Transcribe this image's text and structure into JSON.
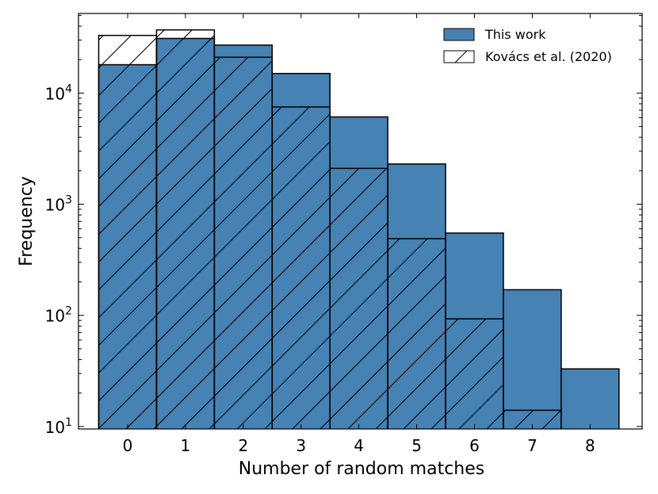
{
  "chart_data": {
    "type": "bar",
    "title": "",
    "xlabel": "Number of random matches",
    "ylabel": "Frequency",
    "yscale": "log",
    "xlim": [
      -0.85,
      8.9
    ],
    "ylim": [
      9.5,
      52000
    ],
    "categories": [
      0,
      1,
      2,
      3,
      4,
      5,
      6,
      7,
      8
    ],
    "xticks": [
      "0",
      "1",
      "2",
      "3",
      "4",
      "5",
      "6",
      "7",
      "8"
    ],
    "yticks": [
      {
        "value": 10,
        "base": "10",
        "exp": "1"
      },
      {
        "value": 100,
        "base": "10",
        "exp": "2"
      },
      {
        "value": 1000,
        "base": "10",
        "exp": "3"
      },
      {
        "value": 10000,
        "base": "10",
        "exp": "4"
      }
    ],
    "legend_position": "top-right",
    "series": [
      {
        "name": "This work",
        "style": "filled",
        "color": "#4682b4",
        "values": [
          18000,
          31000,
          27000,
          15000,
          6100,
          2300,
          550,
          170,
          33
        ]
      },
      {
        "name": "Kovács et al. (2020)",
        "style": "hatched",
        "color": "#000000",
        "values": [
          33000,
          37000,
          21000,
          7500,
          2100,
          490,
          93,
          14,
          null
        ]
      }
    ]
  }
}
